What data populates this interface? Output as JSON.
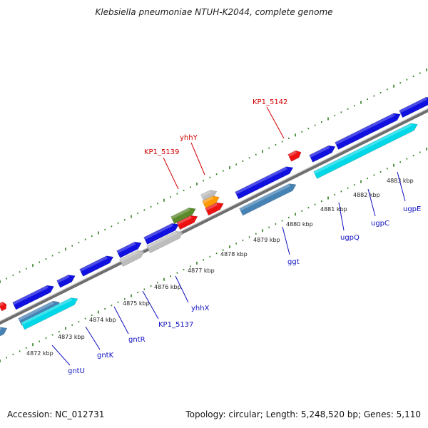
{
  "header": {
    "title": "Klebsiella pneumoniae NTUH-K2044, complete genome"
  },
  "footer": {
    "accession": "Accession: NC_012731",
    "topology": "Topology: circular; Length: 5,248,520 bp; Genes: 5,110"
  },
  "colors": {
    "backbone": "#8c8c8c",
    "tick": "#2e7d1f",
    "forward_cds": "#1010e0",
    "reverse_cds": "#4682b4",
    "cyan_cds": "#00d8e8",
    "grey_cds": "#bdbdbd",
    "red_feature": "#ee1111",
    "olive_feature": "#5b8a2a",
    "orange_feature": "#ff9900",
    "label_blue": "#1010c0",
    "label_red": "#d00000"
  },
  "scale_labels": [
    "4872 kbp",
    "4873 kbp",
    "4874 kbp",
    "4875 kbp",
    "4876 kbp",
    "4877 kbp",
    "4878 kbp",
    "4879 kbp",
    "4880 kbp",
    "4881 kbp",
    "4882 kbp",
    "4883 kbp"
  ],
  "gene_labels": {
    "gntU": "gntU",
    "gntK": "gntK",
    "gntR": "gntR",
    "KP1_5137": "KP1_5137",
    "yhhX": "yhhX",
    "ggt": "ggt",
    "ugpQ": "ugpQ",
    "ugpC": "ugpC",
    "ugpE": "ugpE",
    "KP1_5139": "KP1_5139",
    "yhhY": "yhhY",
    "KP1_5142": "KP1_5142"
  }
}
